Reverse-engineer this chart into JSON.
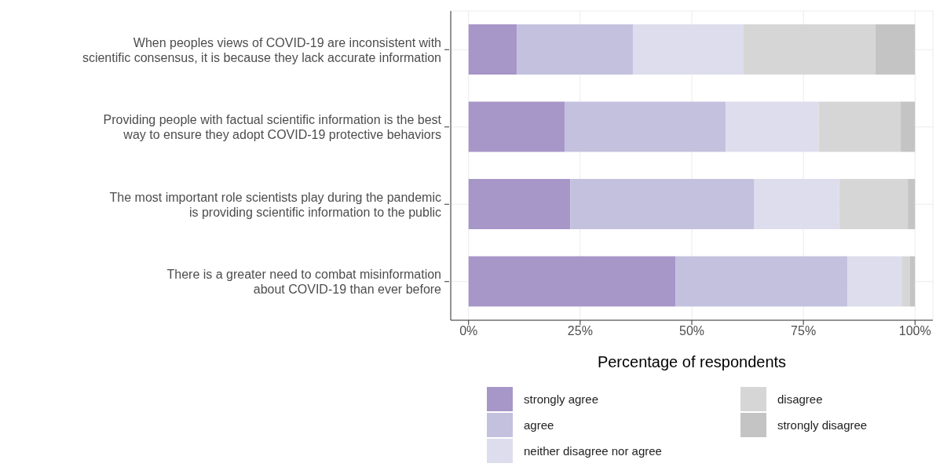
{
  "chart_data": {
    "type": "bar",
    "orientation": "horizontal",
    "stacked": true,
    "xlabel": "Percentage of respondents",
    "categories": [
      "When peoples views of COVID-19 are inconsistent with\nscientific consensus, it is because they lack accurate information",
      "Providing people with factual scientific information is the best\nway to ensure they adopt COVID-19 protective behaviors",
      "The most important role scientists play during the pandemic\nis providing scientific information to the public",
      "There is a greater need to combat misinformation\nabout COVID-19 than ever before"
    ],
    "series": [
      {
        "name": "strongly agree",
        "color": "#a796c8",
        "values": [
          10.8,
          21.5,
          22.8,
          46.4
        ]
      },
      {
        "name": "agree",
        "color": "#c4c1df",
        "values": [
          26.0,
          36.1,
          41.2,
          38.5
        ]
      },
      {
        "name": "neither disagree nor agree",
        "color": "#dedded",
        "values": [
          24.7,
          20.8,
          19.0,
          12.1
        ]
      },
      {
        "name": "disagree",
        "color": "#d6d6d6",
        "values": [
          29.6,
          18.4,
          15.4,
          1.9
        ]
      },
      {
        "name": "strongly disagree",
        "color": "#c4c4c4",
        "values": [
          8.9,
          3.2,
          1.6,
          1.1
        ]
      }
    ],
    "xlim": [
      -4,
      104
    ],
    "xticks": [
      {
        "value": 0,
        "label": "0%"
      },
      {
        "value": 25,
        "label": "25%"
      },
      {
        "value": 50,
        "label": "50%"
      },
      {
        "value": 75,
        "label": "75%"
      },
      {
        "value": 100,
        "label": "100%"
      }
    ],
    "grid": true,
    "legend": "bottom"
  }
}
